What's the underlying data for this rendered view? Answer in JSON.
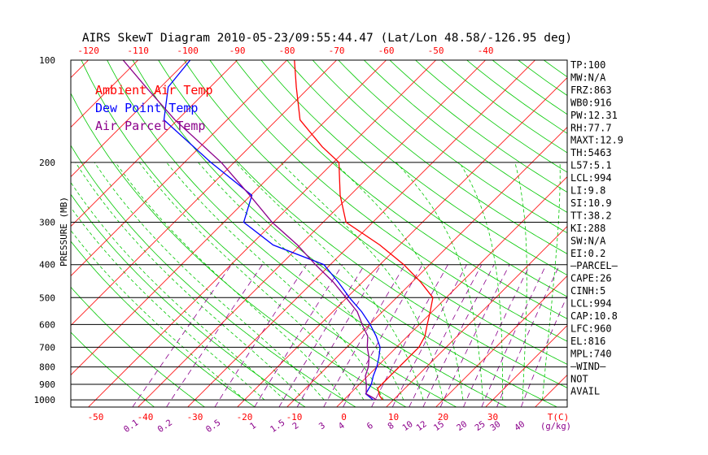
{
  "chart_data": {
    "type": "line",
    "title": "AIRS SkewT Diagram 2010-05-23/09:55:44.47 (Lat/Lon 48.58/-126.95 deg)",
    "ylabel": "PRESSURE (MB)",
    "xlabel": "T(C)",
    "mixing_ratio_label": "(g/kg)",
    "y_scale": "log",
    "ylim": [
      1050,
      100
    ],
    "xlim_bottom": [
      -55,
      45
    ],
    "pressure_ticks": [
      100,
      200,
      300,
      400,
      500,
      600,
      700,
      800,
      900,
      1000
    ],
    "top_temp_ticks": [
      -120,
      -110,
      -100,
      -90,
      -80,
      -70,
      -60,
      -50,
      -40
    ],
    "bottom_temp_ticks": [
      -50,
      -40,
      -30,
      -20,
      -10,
      0,
      10,
      20,
      30
    ],
    "mixing_ratio_ticks": [
      "0.1",
      "0.2",
      "0.5",
      "1",
      "1.5",
      "2",
      "3",
      "4",
      "6",
      "8",
      "10",
      "12",
      "15",
      "20",
      "25",
      "30",
      "40"
    ],
    "legend": [
      {
        "name": "Ambient Air Temp",
        "color": "#ff0000"
      },
      {
        "name": "Dew Point Temp",
        "color": "#0000ff"
      },
      {
        "name": "Air Parcel Temp",
        "color": "#8b008b"
      }
    ],
    "series": [
      {
        "name": "Ambient Air Temp",
        "color": "#ff0000",
        "points": [
          [
            1000,
            7.8
          ],
          [
            975,
            6.5
          ],
          [
            925,
            4.5
          ],
          [
            900,
            4.5
          ],
          [
            850,
            4.5
          ],
          [
            800,
            4.5
          ],
          [
            750,
            4.5
          ],
          [
            700,
            4.5
          ],
          [
            650,
            3.5
          ],
          [
            600,
            1.6
          ],
          [
            550,
            -0.4
          ],
          [
            500,
            -2.7
          ],
          [
            450,
            -8.3
          ],
          [
            400,
            -15.2
          ],
          [
            350,
            -24.0
          ],
          [
            300,
            -35.4
          ],
          [
            250,
            -42.0
          ],
          [
            200,
            -48.9
          ],
          [
            180,
            -55.4
          ],
          [
            150,
            -65.3
          ],
          [
            120,
            -72.7
          ],
          [
            100,
            -78.5
          ]
        ]
      },
      {
        "name": "Dew Point Temp",
        "color": "#0000ff",
        "points": [
          [
            1000,
            5.9
          ],
          [
            960,
            3.2
          ],
          [
            900,
            2.4
          ],
          [
            850,
            1.1
          ],
          [
            800,
            0.0
          ],
          [
            750,
            -1.5
          ],
          [
            700,
            -3.3
          ],
          [
            650,
            -6.3
          ],
          [
            600,
            -9.9
          ],
          [
            550,
            -14.2
          ],
          [
            500,
            -19.5
          ],
          [
            450,
            -24.9
          ],
          [
            400,
            -31.3
          ],
          [
            350,
            -45.5
          ],
          [
            300,
            -56.0
          ],
          [
            250,
            -59.8
          ],
          [
            200,
            -74.7
          ],
          [
            150,
            -92.7
          ],
          [
            120,
            -98.5
          ],
          [
            100,
            -99.5
          ]
        ]
      },
      {
        "name": "Air Parcel Temp",
        "color": "#8b008b",
        "points": [
          [
            1000,
            6.6
          ],
          [
            960,
            3.3
          ],
          [
            900,
            1.4
          ],
          [
            850,
            -0.5
          ],
          [
            800,
            -1.7
          ],
          [
            750,
            -3.5
          ],
          [
            700,
            -5.9
          ],
          [
            650,
            -8.0
          ],
          [
            600,
            -11.5
          ],
          [
            550,
            -15.1
          ],
          [
            500,
            -20.2
          ],
          [
            450,
            -25.9
          ],
          [
            400,
            -33.0
          ],
          [
            350,
            -40.6
          ],
          [
            300,
            -50.3
          ],
          [
            250,
            -60.2
          ],
          [
            200,
            -72.6
          ],
          [
            150,
            -90.5
          ],
          [
            120,
            -103.0
          ],
          [
            100,
            -113.0
          ]
        ]
      }
    ],
    "indices": [
      "TP:100",
      "MW:N/A",
      "FRZ:863",
      "WB0:916",
      "PW:12.31",
      "RH:77.7",
      "MAXT:12.9",
      "TH:5463",
      "L57:5.1",
      "LCL:994",
      "LI:9.8",
      "SI:10.9",
      "TT:38.2",
      "KI:288",
      "SW:N/A",
      "EI:0.2",
      "—PARCEL—",
      "CAPE:26",
      "CINH:5",
      "LCL:994",
      "CAP:10.8",
      "LFC:960",
      "EL:816",
      "MPL:740",
      "—WIND—",
      "NOT",
      "AVAIL"
    ],
    "colors": {
      "isotherm": "#ff0000",
      "dry_adiabat": "#00c800",
      "moist_adiabat": "#00c800",
      "mixing_ratio": "#8b008b",
      "isobar": "#000000"
    },
    "grid": true,
    "legend_placement": "top-left"
  }
}
